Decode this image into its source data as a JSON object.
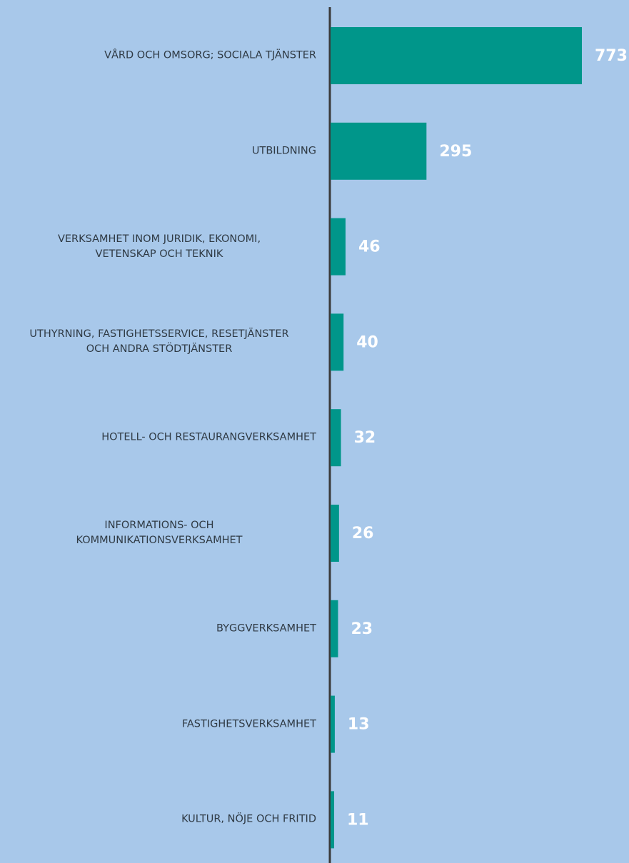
{
  "chart_data": {
    "type": "bar",
    "orientation": "horizontal",
    "categories": [
      "VÅRD OCH OMSORG; SOCIALA TJÄNSTER",
      "UTBILDNING",
      "VERKSAMHET INOM JURIDIK, EKONOMI,\nVETENSKAP OCH TEKNIK",
      "UTHYRNING, FASTIGHETSSERVICE, RESETJÄNSTER\nOCH ANDRA STÖDTJÄNSTER",
      "HOTELL- OCH RESTAURANGVERKSAMHET",
      "INFORMATIONS- OCH\nKOMMUNIKATIONSVERKSAMHET",
      "BYGGVERKSAMHET",
      "FASTIGHETSVERKSAMHET",
      "KULTUR, NÖJE OCH FRITID"
    ],
    "values": [
      773,
      295,
      46,
      40,
      32,
      26,
      23,
      13,
      11
    ],
    "color": "#00968a"
  }
}
